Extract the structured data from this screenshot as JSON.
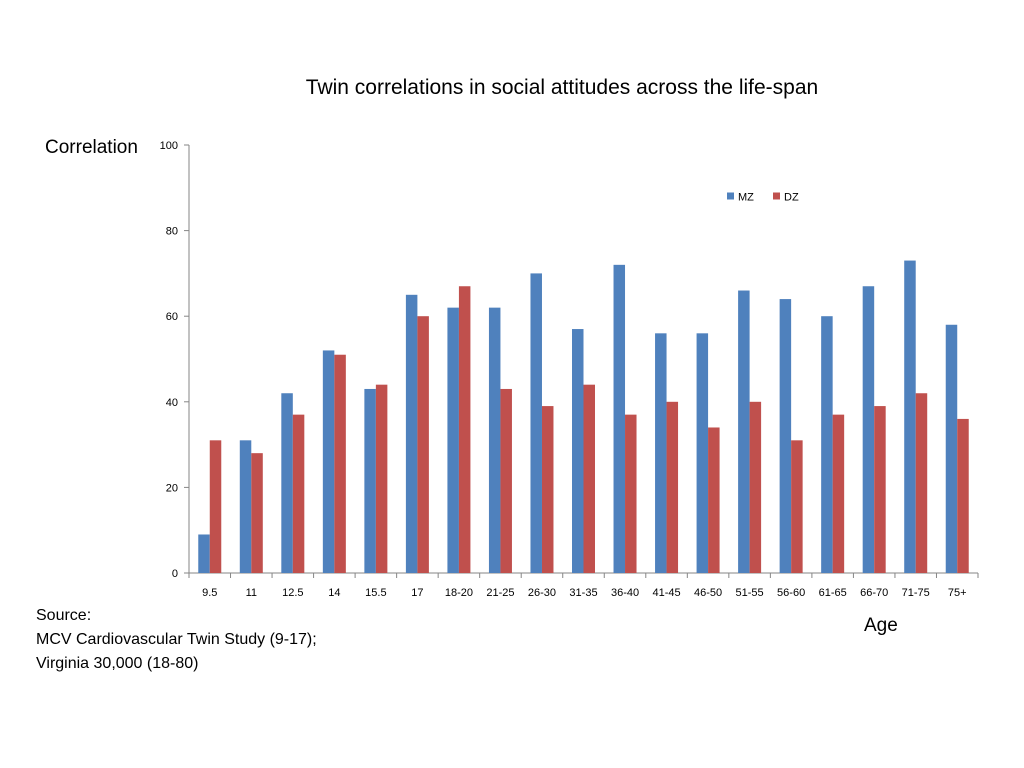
{
  "chart_data": {
    "type": "bar",
    "title": "Twin correlations in social attitudes across the life-span",
    "xlabel": "Age",
    "ylabel": "Correlation",
    "ylim": [
      0,
      100
    ],
    "yticks": [
      0,
      20,
      40,
      60,
      80,
      100
    ],
    "grid": false,
    "legend_position": "top-right",
    "categories": [
      "9.5",
      "11",
      "12.5",
      "14",
      "15.5",
      "17",
      "18-20",
      "21-25",
      "26-30",
      "31-35",
      "36-40",
      "41-45",
      "46-50",
      "51-55",
      "56-60",
      "61-65",
      "66-70",
      "71-75",
      "75+"
    ],
    "series": [
      {
        "name": "MZ",
        "color": "#4F81BD",
        "values": [
          9,
          31,
          42,
          52,
          43,
          65,
          62,
          62,
          70,
          57,
          72,
          56,
          56,
          66,
          64,
          60,
          67,
          73,
          58
        ]
      },
      {
        "name": "DZ",
        "color": "#C0504D",
        "values": [
          31,
          28,
          37,
          51,
          44,
          60,
          67,
          43,
          39,
          44,
          37,
          40,
          34,
          40,
          31,
          37,
          39,
          42,
          36
        ]
      }
    ]
  },
  "source": {
    "lines": [
      "Source:",
      "MCV Cardiovascular Twin Study (9-17);",
      "Virginia 30,000 (18-80)"
    ]
  }
}
